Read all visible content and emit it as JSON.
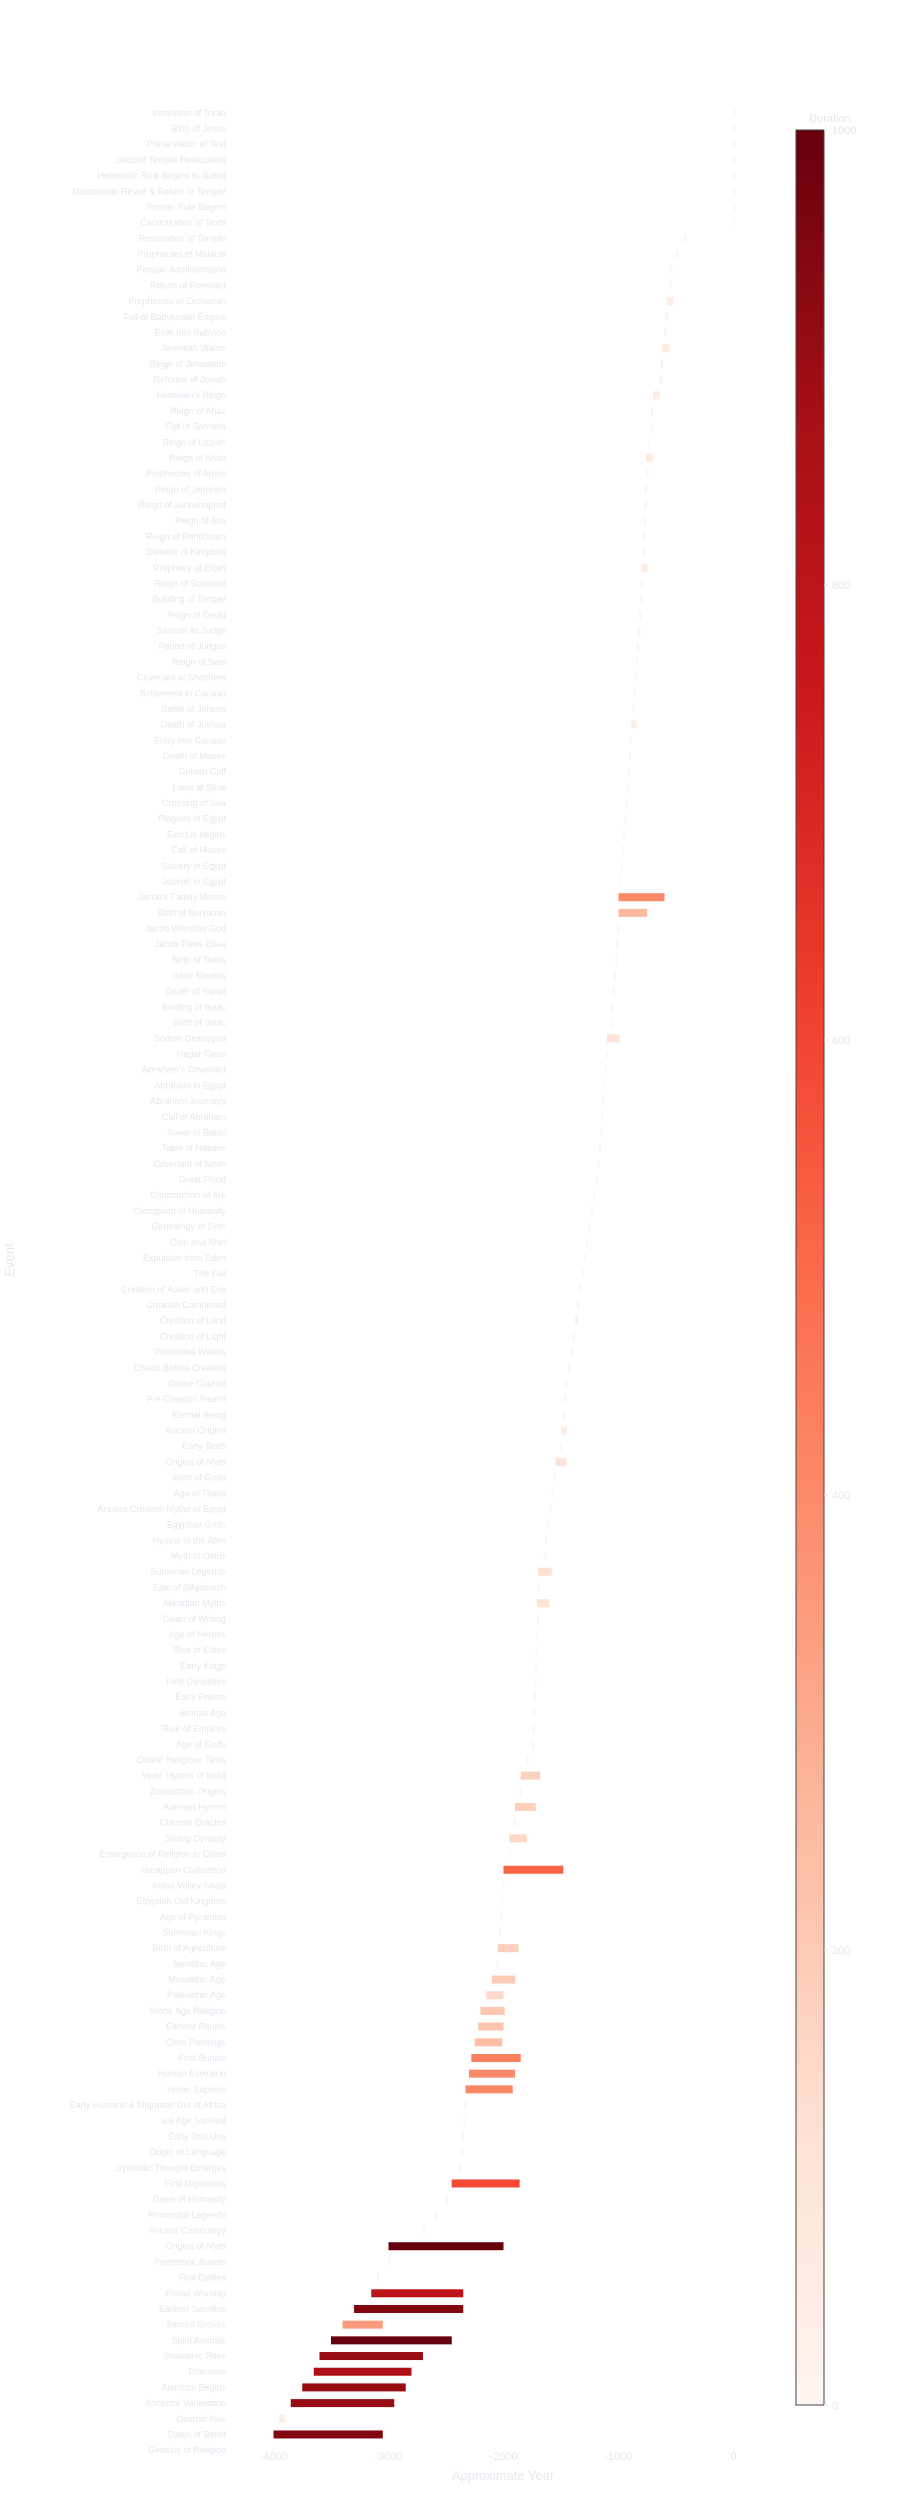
{
  "chart_data": {
    "type": "bar",
    "orientation": "horizontal",
    "xlabel": "Approximate Year",
    "ylabel": "Event",
    "xlim": [
      -4100,
      100
    ],
    "xticks": [
      -4000,
      -3000,
      -2000,
      -1000,
      0
    ],
    "xtick_labels": [
      "-4000",
      "-3000",
      "-2000",
      "-1000",
      "0"
    ],
    "grid": false,
    "colorbar": {
      "title": "Duration",
      "colormap": "Reds",
      "min": 0,
      "max": 1000,
      "ticks": [
        0,
        200,
        400,
        600,
        800,
        1000
      ],
      "tick_labels": [
        "0",
        "200",
        "400",
        "600",
        "800",
        "1000"
      ]
    },
    "colors": {
      "low": "#fff5f0",
      "mid": "#fb6a4a",
      "high": "#67000d",
      "label_gray": "#e6e6ee"
    },
    "events": [
      {
        "label": "Institution of Torah",
        "start": 0,
        "end": 0
      },
      {
        "label": "Birth of Jesus",
        "start": 0,
        "end": 0
      },
      {
        "label": "Preservation of Text",
        "start": 0,
        "end": 0
      },
      {
        "label": "Second Temple Restoration",
        "start": 0,
        "end": 0
      },
      {
        "label": "Hellenistic Rule Begins in Judea",
        "start": 0,
        "end": 0
      },
      {
        "label": "Maccabean Revolt & Return to Temple",
        "start": 0,
        "end": 0
      },
      {
        "label": "Roman Rule Begins",
        "start": 0,
        "end": 0
      },
      {
        "label": "Canonization of Texts",
        "start": 0,
        "end": 0
      },
      {
        "label": "Restoration of Temple",
        "start": -430,
        "end": -410
      },
      {
        "label": "Prophecies of Malachi",
        "start": -500,
        "end": -480
      },
      {
        "label": "Persian Administration",
        "start": -550,
        "end": -530
      },
      {
        "label": "Return of Remnant",
        "start": -560,
        "end": -540
      },
      {
        "label": "Prophecies of Zechariah",
        "start": -580,
        "end": -520
      },
      {
        "label": "Fall of Babylonian Empire",
        "start": -590,
        "end": -570
      },
      {
        "label": "Exile into Babylon",
        "start": -600,
        "end": -580
      },
      {
        "label": "Jeremiah Warns",
        "start": -620,
        "end": -560
      },
      {
        "label": "Reign of Jehoiakim",
        "start": -630,
        "end": -610
      },
      {
        "label": "Reforms of Josiah",
        "start": -640,
        "end": -620
      },
      {
        "label": "Hezekiah's Reign",
        "start": -700,
        "end": -640
      },
      {
        "label": "Reign of Ahaz",
        "start": -720,
        "end": -700
      },
      {
        "label": "Fall of Samaria",
        "start": -722,
        "end": -710
      },
      {
        "label": "Reign of Uzziah",
        "start": -740,
        "end": -730
      },
      {
        "label": "Reign of Ahab",
        "start": -760,
        "end": -700
      },
      {
        "label": "Prophecies of Amos",
        "start": -760,
        "end": -740
      },
      {
        "label": "Reign of Jehoram",
        "start": -770,
        "end": -750
      },
      {
        "label": "Reign of Jehoshaphat",
        "start": -775,
        "end": -755
      },
      {
        "label": "Reign of Asa",
        "start": -780,
        "end": -770
      },
      {
        "label": "Reign of Rehoboam",
        "start": -785,
        "end": -770
      },
      {
        "label": "Division of Kingdom",
        "start": -790,
        "end": -780
      },
      {
        "label": "Prophecy of Elijah",
        "start": -800,
        "end": -740
      },
      {
        "label": "Reign of Solomon",
        "start": -805,
        "end": -790
      },
      {
        "label": "Building of Temple",
        "start": -810,
        "end": -790
      },
      {
        "label": "Reign of David",
        "start": -820,
        "end": -800
      },
      {
        "label": "Samuel as Judge",
        "start": -830,
        "end": -810
      },
      {
        "label": "Period of Judges",
        "start": -840,
        "end": -820
      },
      {
        "label": "Reign of Saul",
        "start": -850,
        "end": -840
      },
      {
        "label": "Covenant at Shechem",
        "start": -860,
        "end": -850
      },
      {
        "label": "Settlement in Canaan",
        "start": -870,
        "end": -860
      },
      {
        "label": "Battle of Jericho",
        "start": -880,
        "end": -870
      },
      {
        "label": "Death of Joshua",
        "start": -890,
        "end": -840
      },
      {
        "label": "Entry into Canaan",
        "start": -900,
        "end": -890
      },
      {
        "label": "Death of Moses",
        "start": -910,
        "end": -900
      },
      {
        "label": "Golden Calf",
        "start": -920,
        "end": -910
      },
      {
        "label": "Laws at Sinai",
        "start": -930,
        "end": -920
      },
      {
        "label": "Crossing of Sea",
        "start": -940,
        "end": -930
      },
      {
        "label": "Plagues of Egypt",
        "start": -950,
        "end": -940
      },
      {
        "label": "Exodus begins",
        "start": -960,
        "end": -950
      },
      {
        "label": "Call of Moses",
        "start": -970,
        "end": -960
      },
      {
        "label": "Slavery in Egypt",
        "start": -980,
        "end": -970
      },
      {
        "label": "Joseph in Egypt",
        "start": -990,
        "end": -980
      },
      {
        "label": "Jacob's Family Moves",
        "start": -1000,
        "end": -600
      },
      {
        "label": "Birth of Benjamin",
        "start": -1000,
        "end": -750
      },
      {
        "label": "Jacob Wrestles God",
        "start": -1010,
        "end": -1000
      },
      {
        "label": "Jacob Flees Esau",
        "start": -1020,
        "end": -1010
      },
      {
        "label": "Birth of Twins",
        "start": -1030,
        "end": -1020
      },
      {
        "label": "Isaac Marries",
        "start": -1040,
        "end": -1030
      },
      {
        "label": "Death of Sarah",
        "start": -1050,
        "end": -1040
      },
      {
        "label": "Binding of Isaac",
        "start": -1060,
        "end": -1050
      },
      {
        "label": "Birth of Isaac",
        "start": -1070,
        "end": -1060
      },
      {
        "label": "Sodom Destroyed",
        "start": -1100,
        "end": -990
      },
      {
        "label": "Hagar Flees",
        "start": -1110,
        "end": -1100
      },
      {
        "label": "Abraham's Covenant",
        "start": -1120,
        "end": -1110
      },
      {
        "label": "Abraham in Egypt",
        "start": -1130,
        "end": -1120
      },
      {
        "label": "Abraham Journeys",
        "start": -1140,
        "end": -1130
      },
      {
        "label": "Call of Abraham",
        "start": -1150,
        "end": -1140
      },
      {
        "label": "Tower of Babel",
        "start": -1160,
        "end": -1150
      },
      {
        "label": "Table of Nations",
        "start": -1170,
        "end": -1160
      },
      {
        "label": "Covenant of Noah",
        "start": -1180,
        "end": -1170
      },
      {
        "label": "Great Flood",
        "start": -1200,
        "end": -1190
      },
      {
        "label": "Construction of Ark",
        "start": -1220,
        "end": -1210
      },
      {
        "label": "Corruption of Humanity",
        "start": -1240,
        "end": -1230
      },
      {
        "label": "Genealogy of Seth",
        "start": -1260,
        "end": -1250
      },
      {
        "label": "Cain and Abel",
        "start": -1280,
        "end": -1270
      },
      {
        "label": "Expulsion from Eden",
        "start": -1300,
        "end": -1290
      },
      {
        "label": "The Fall",
        "start": -1320,
        "end": -1310
      },
      {
        "label": "Creation of Adam and Eve",
        "start": -1340,
        "end": -1330
      },
      {
        "label": "Creation Completed",
        "start": -1360,
        "end": -1350
      },
      {
        "label": "Creation of Land",
        "start": -1380,
        "end": -1350
      },
      {
        "label": "Creation of Light",
        "start": -1400,
        "end": -1390
      },
      {
        "label": "Primordial Waters",
        "start": -1420,
        "end": -1410
      },
      {
        "label": "Chaos Before Creation",
        "start": -1440,
        "end": -1430
      },
      {
        "label": "Divine Council",
        "start": -1460,
        "end": -1450
      },
      {
        "label": "Pre-Creation Realm",
        "start": -1470,
        "end": -1460
      },
      {
        "label": "Eternal Being",
        "start": -1480,
        "end": -1470
      },
      {
        "label": "Ancient Origins",
        "start": -1500,
        "end": -1450
      },
      {
        "label": "Early Texts",
        "start": -1510,
        "end": -1500
      },
      {
        "label": "Origins of Myth",
        "start": -1550,
        "end": -1450
      },
      {
        "label": "Birth of Gods",
        "start": -1560,
        "end": -1550
      },
      {
        "label": "Age of Titans",
        "start": -1580,
        "end": -1570
      },
      {
        "label": "Ancient Creation Myths of Egypt",
        "start": -1600,
        "end": -1590
      },
      {
        "label": "Egyptian Gods",
        "start": -1620,
        "end": -1610
      },
      {
        "label": "Hymns to the Aten",
        "start": -1640,
        "end": -1630
      },
      {
        "label": "Myth of Osiris",
        "start": -1650,
        "end": -1640
      },
      {
        "label": "Sumerian Legends",
        "start": -1700,
        "end": -1580
      },
      {
        "label": "Epic of Gilgamesh",
        "start": -1700,
        "end": -1690
      },
      {
        "label": "Akkadian Myths",
        "start": -1710,
        "end": -1600
      },
      {
        "label": "Dawn of Writing",
        "start": -1710,
        "end": -1700
      },
      {
        "label": "Age of Heroes",
        "start": -1715,
        "end": -1705
      },
      {
        "label": "Rise of Cities",
        "start": -1720,
        "end": -1710
      },
      {
        "label": "Early Kings",
        "start": -1725,
        "end": -1715
      },
      {
        "label": "First Dynasties",
        "start": -1730,
        "end": -1720
      },
      {
        "label": "Early Priests",
        "start": -1735,
        "end": -1725
      },
      {
        "label": "Bronze Age",
        "start": -1740,
        "end": -1730
      },
      {
        "label": "Rise of Empires",
        "start": -1745,
        "end": -1735
      },
      {
        "label": "Age of Gods",
        "start": -1750,
        "end": -1740
      },
      {
        "label": "Oldest Religious Texts",
        "start": -1800,
        "end": -1790
      },
      {
        "label": "Vedic Hymns of India",
        "start": -1850,
        "end": -1680
      },
      {
        "label": "Zoroastrian Origins",
        "start": -1860,
        "end": -1850
      },
      {
        "label": "Avestan Hymns",
        "start": -1900,
        "end": -1720
      },
      {
        "label": "Chinese Oracles",
        "start": -1910,
        "end": -1900
      },
      {
        "label": "Shang Dynasty",
        "start": -1950,
        "end": -1800
      },
      {
        "label": "Emergence of Religion in China",
        "start": -1950,
        "end": -1940
      },
      {
        "label": "Harappan Civilization",
        "start": -2000,
        "end": -1480
      },
      {
        "label": "Indus Valley Seals",
        "start": -2010,
        "end": -2000
      },
      {
        "label": "Egyptian Old Kingdom",
        "start": -2020,
        "end": -2010
      },
      {
        "label": "Age of Pyramids",
        "start": -2030,
        "end": -2020
      },
      {
        "label": "Sumerian Kings",
        "start": -2040,
        "end": -2030
      },
      {
        "label": "Birth of Agriculture",
        "start": -2050,
        "end": -1870
      },
      {
        "label": "Neolithic Age",
        "start": -2060,
        "end": -2050
      },
      {
        "label": "Mesolithic Age",
        "start": -2100,
        "end": -1900
      },
      {
        "label": "Paleolithic Age",
        "start": -2150,
        "end": -2000
      },
      {
        "label": "Stone Age Religion",
        "start": -2200,
        "end": -1990
      },
      {
        "label": "Earliest Rituals",
        "start": -2220,
        "end": -2000
      },
      {
        "label": "Cave Paintings",
        "start": -2250,
        "end": -2010
      },
      {
        "label": "First Burials",
        "start": -2280,
        "end": -1850
      },
      {
        "label": "Human Evolution",
        "start": -2300,
        "end": -1900
      },
      {
        "label": "Homo Sapiens",
        "start": -2330,
        "end": -1920
      },
      {
        "label": "Early Humans & Migration Out of Africa",
        "start": -2340,
        "end": -2330
      },
      {
        "label": "Ice Age Survival",
        "start": -2350,
        "end": -2340
      },
      {
        "label": "Early Tool Use",
        "start": -2360,
        "end": -2350
      },
      {
        "label": "Origin of Language",
        "start": -2370,
        "end": -2360
      },
      {
        "label": "Symbolic Thought Emerges",
        "start": -2380,
        "end": -2370
      },
      {
        "label": "First Migrations",
        "start": -2450,
        "end": -1860
      },
      {
        "label": "Dawn of Humanity",
        "start": -2500,
        "end": -2490
      },
      {
        "label": "Primordial Legends",
        "start": -2600,
        "end": -2590
      },
      {
        "label": "Ancient Cosmology",
        "start": -2700,
        "end": -2690
      },
      {
        "label": "Origins of Myth",
        "start": -3000,
        "end": -2000
      },
      {
        "label": "Prehistoric Beliefs",
        "start": -3000,
        "end": -2990
      },
      {
        "label": "First Deities",
        "start": -3100,
        "end": -3090
      },
      {
        "label": "Primal Worship",
        "start": -3150,
        "end": -2350
      },
      {
        "label": "Earliest Sacrifice",
        "start": -3300,
        "end": -2350
      },
      {
        "label": "Sacred Groves",
        "start": -3400,
        "end": -3050
      },
      {
        "label": "Spirit Animals",
        "start": -3500,
        "end": -2450
      },
      {
        "label": "Shamanic Rites",
        "start": -3600,
        "end": -2700
      },
      {
        "label": "Totemism",
        "start": -3650,
        "end": -2800
      },
      {
        "label": "Animism Begins",
        "start": -3750,
        "end": -2850
      },
      {
        "label": "Ancestor Veneration",
        "start": -3850,
        "end": -2950
      },
      {
        "label": "Cosmic Awe",
        "start": -3950,
        "end": -3900
      },
      {
        "label": "Dawn of Belief",
        "start": -4000,
        "end": -3050
      },
      {
        "label": "Genesis of Religion",
        "start": -4010,
        "end": -4000
      }
    ]
  }
}
